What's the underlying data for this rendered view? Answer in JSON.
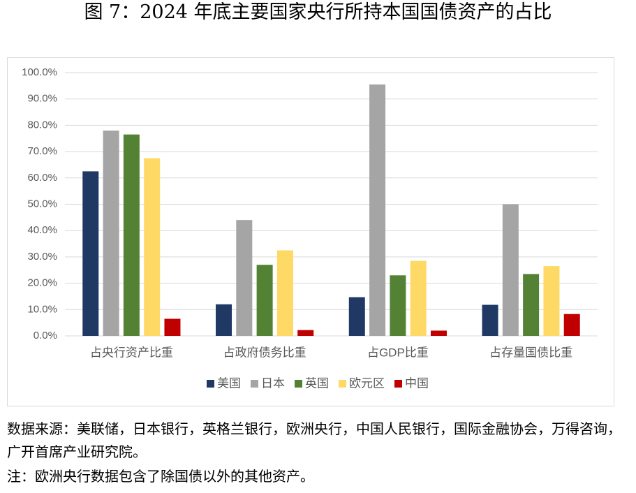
{
  "chart_data": {
    "type": "bar",
    "title": "图 7：2024 年底主要国家央行所持本国国债资产的占比",
    "categories": [
      "占央行资产比重",
      "占政府债务比重",
      "占GDP比重",
      "占存量国债比重"
    ],
    "series": [
      {
        "name": "美国",
        "color": "#203864",
        "values": [
          62.5,
          12,
          14.7,
          11.8
        ]
      },
      {
        "name": "日本",
        "color": "#a5a5a5",
        "values": [
          78,
          44,
          95.5,
          50
        ]
      },
      {
        "name": "英国",
        "color": "#548235",
        "values": [
          76.5,
          27,
          23,
          23.5
        ]
      },
      {
        "name": "欧元区",
        "color": "#ffd966",
        "values": [
          67.5,
          32.5,
          28.5,
          26.5
        ]
      },
      {
        "name": "中国",
        "color": "#c00000",
        "values": [
          6.5,
          2.2,
          2,
          8.3
        ]
      }
    ],
    "ylim": [
      0,
      100
    ],
    "yticks": [
      {
        "value": 0,
        "label": "0.0%"
      },
      {
        "value": 10,
        "label": "10.0%"
      },
      {
        "value": 20,
        "label": "20.0%"
      },
      {
        "value": 30,
        "label": "30.0%"
      },
      {
        "value": 40,
        "label": "40.0%"
      },
      {
        "value": 50,
        "label": "50.0%"
      },
      {
        "value": 60,
        "label": "60.0%"
      },
      {
        "value": 70,
        "label": "70.0%"
      },
      {
        "value": 80,
        "label": "80.0%"
      },
      {
        "value": 90,
        "label": "90.0%"
      },
      {
        "value": 100,
        "label": "100.0%"
      }
    ],
    "grid": true,
    "legend": "bottom"
  },
  "source": "数据来源：美联储，日本银行，英格兰银行，欧洲央行，中国人民银行，国际金融协会，万得咨询，广开首席产业研究院。",
  "note": "注：欧洲央行数据包含了除国债以外的其他资产。"
}
